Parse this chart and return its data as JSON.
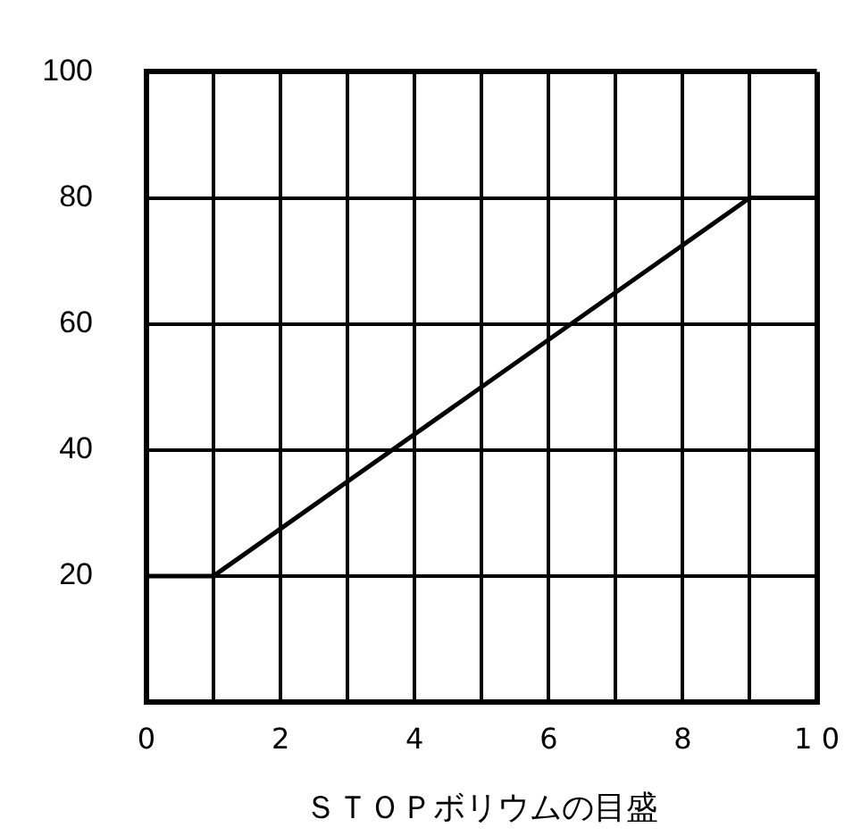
{
  "chart_data": {
    "type": "line",
    "xlabel": "ＳＴＯＰボリウムの目盛",
    "x": [
      0,
      1,
      9,
      10
    ],
    "series": [
      {
        "color": "#000000",
        "values": [
          20,
          20,
          80,
          80
        ]
      }
    ],
    "xlim": [
      0,
      10
    ],
    "xticks": [
      0,
      {
        "value": 1,
        "label": null
      },
      2,
      {
        "value": 3,
        "label": null
      },
      4,
      {
        "value": 5,
        "label": null
      },
      6,
      {
        "value": 7,
        "label": null
      },
      8,
      {
        "value": 9,
        "label": null
      },
      {
        "value": 10,
        "label": "1 0"
      }
    ],
    "ylim": [
      0,
      100
    ],
    "yticks": [
      {
        "value": 0,
        "label": null
      },
      20,
      40,
      60,
      80,
      100
    ],
    "grid": true,
    "legend": false,
    "marker": "none",
    "line_style": "solid"
  }
}
